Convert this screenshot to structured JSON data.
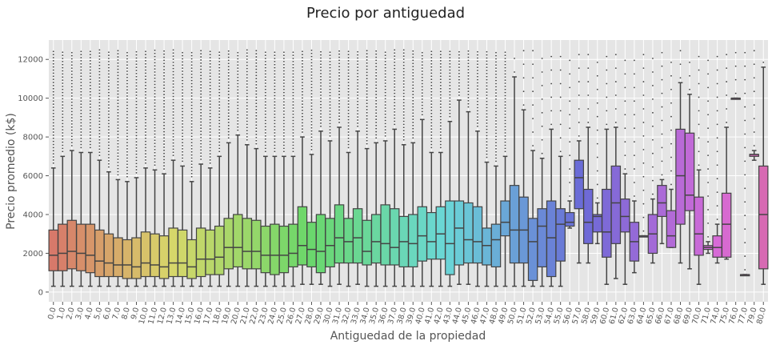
{
  "chart_data": {
    "type": "box",
    "title": "Precio por antiguedad",
    "xlabel": "Antiguedad de la propiedad",
    "ylabel": "Precio promedio (k$)",
    "ylim": [
      -500,
      13000
    ],
    "yticks": [
      0,
      2000,
      4000,
      6000,
      8000,
      10000,
      12000
    ],
    "grid": true,
    "legend": "none",
    "box_fields": [
      "lower_whisker",
      "q1",
      "median",
      "q3",
      "upper_whisker"
    ],
    "categories": [
      "0.0",
      "1.0",
      "2.0",
      "3.0",
      "4.0",
      "5.0",
      "6.0",
      "7.0",
      "8.0",
      "9.0",
      "10.0",
      "11.0",
      "12.0",
      "13.0",
      "14.0",
      "15.0",
      "16.0",
      "17.0",
      "18.0",
      "19.0",
      "20.0",
      "21.0",
      "22.0",
      "23.0",
      "24.0",
      "25.0",
      "26.0",
      "27.0",
      "28.0",
      "29.0",
      "30.0",
      "31.0",
      "32.0",
      "33.0",
      "34.0",
      "35.0",
      "36.0",
      "37.0",
      "38.0",
      "39.0",
      "40.0",
      "41.0",
      "42.0",
      "43.0",
      "44.0",
      "45.0",
      "46.0",
      "47.0",
      "48.0",
      "49.0",
      "50.0",
      "51.0",
      "52.0",
      "53.0",
      "54.0",
      "55.0",
      "56.0",
      "57.0",
      "58.0",
      "59.0",
      "60.0",
      "61.0",
      "62.0",
      "63.0",
      "64.0",
      "65.0",
      "66.0",
      "67.0",
      "68.0",
      "69.0",
      "70.0",
      "71.0",
      "74.0",
      "75.0",
      "76.0",
      "77.0",
      "79.0",
      "80.0"
    ],
    "boxes": [
      [
        300,
        1100,
        1900,
        3200,
        6400
      ],
      [
        300,
        1100,
        2000,
        3500,
        7000
      ],
      [
        300,
        1200,
        2100,
        3700,
        7300
      ],
      [
        300,
        1100,
        2000,
        3500,
        7200
      ],
      [
        300,
        1000,
        1900,
        3500,
        7200
      ],
      [
        300,
        800,
        1600,
        3200,
        6800
      ],
      [
        300,
        800,
        1500,
        3000,
        6200
      ],
      [
        300,
        800,
        1400,
        2800,
        5800
      ],
      [
        300,
        700,
        1400,
        2700,
        5700
      ],
      [
        300,
        700,
        1300,
        2800,
        5900
      ],
      [
        300,
        800,
        1500,
        3100,
        6400
      ],
      [
        300,
        800,
        1400,
        3000,
        6300
      ],
      [
        300,
        700,
        1300,
        2900,
        6100
      ],
      [
        300,
        800,
        1500,
        3300,
        6800
      ],
      [
        300,
        800,
        1500,
        3200,
        6500
      ],
      [
        300,
        700,
        1300,
        2700,
        5700
      ],
      [
        300,
        800,
        1700,
        3300,
        6600
      ],
      [
        300,
        900,
        1700,
        3200,
        6400
      ],
      [
        300,
        900,
        1800,
        3400,
        7000
      ],
      [
        300,
        1200,
        2300,
        3800,
        7700
      ],
      [
        300,
        1300,
        2300,
        4000,
        8100
      ],
      [
        300,
        1200,
        2100,
        3800,
        7600
      ],
      [
        300,
        1200,
        2100,
        3700,
        7400
      ],
      [
        300,
        1000,
        1900,
        3400,
        7000
      ],
      [
        300,
        900,
        1900,
        3500,
        7000
      ],
      [
        300,
        1000,
        1900,
        3400,
        7000
      ],
      [
        300,
        1300,
        2000,
        3500,
        7000
      ],
      [
        400,
        1400,
        2400,
        4400,
        8000
      ],
      [
        400,
        1300,
        2200,
        3600,
        7100
      ],
      [
        400,
        1000,
        2100,
        4000,
        8300
      ],
      [
        300,
        1300,
        2400,
        3800,
        7800
      ],
      [
        400,
        1500,
        2800,
        4500,
        8500
      ],
      [
        300,
        1500,
        2600,
        3800,
        7200
      ],
      [
        400,
        1500,
        2800,
        4300,
        8300
      ],
      [
        300,
        1400,
        2100,
        3700,
        7400
      ],
      [
        300,
        1500,
        2600,
        4000,
        7700
      ],
      [
        300,
        1400,
        2500,
        4500,
        7800
      ],
      [
        300,
        1400,
        2300,
        4300,
        8400
      ],
      [
        300,
        1300,
        2600,
        3900,
        7600
      ],
      [
        300,
        1300,
        2500,
        4000,
        7700
      ],
      [
        300,
        1600,
        2900,
        4400,
        8900
      ],
      [
        300,
        1700,
        2600,
        4100,
        7200
      ],
      [
        300,
        1700,
        3000,
        4400,
        7200
      ],
      [
        300,
        900,
        2500,
        4700,
        8800
      ],
      [
        400,
        1400,
        3300,
        4700,
        9900
      ],
      [
        400,
        1500,
        2700,
        4600,
        9300
      ],
      [
        300,
        1500,
        2600,
        4400,
        8300
      ],
      [
        300,
        1400,
        2400,
        3300,
        6700
      ],
      [
        300,
        1300,
        2700,
        3500,
        6500
      ],
      [
        300,
        2900,
        3600,
        4700,
        7000
      ],
      [
        300,
        1500,
        3200,
        5500,
        11100
      ],
      [
        300,
        1500,
        3200,
        4900,
        9400
      ],
      [
        300,
        600,
        2600,
        3800,
        7300
      ],
      [
        300,
        1300,
        3400,
        4300,
        6900
      ],
      [
        300,
        800,
        2800,
        4700,
        8400
      ],
      [
        300,
        1600,
        3500,
        4300,
        7000
      ],
      [
        3300,
        3400,
        3600,
        4100,
        4700
      ],
      [
        1500,
        4300,
        5900,
        6800,
        7800
      ],
      [
        1500,
        2500,
        3600,
        5300,
        8500
      ],
      [
        2500,
        3100,
        3900,
        4000,
        4600
      ],
      [
        400,
        1800,
        3100,
        5300,
        8400
      ],
      [
        700,
        2500,
        4600,
        6500,
        8500
      ],
      [
        400,
        3100,
        3900,
        4800,
        6100
      ],
      [
        1000,
        1600,
        2600,
        3600,
        4700
      ],
      [
        2900,
        2900,
        2900,
        2900,
        2900
      ],
      [
        1500,
        2000,
        3000,
        4000,
        4800
      ],
      [
        2500,
        3900,
        4600,
        5500,
        5800
      ],
      [
        2300,
        2300,
        2900,
        4200,
        5300
      ],
      [
        1500,
        3500,
        6000,
        8400,
        10800
      ],
      [
        1200,
        4200,
        5000,
        8200,
        10200
      ],
      [
        400,
        1900,
        3000,
        4900,
        6300
      ],
      [
        2000,
        2200,
        2300,
        2400,
        2600
      ],
      [
        1500,
        1800,
        2300,
        2900,
        3500
      ],
      [
        1700,
        1800,
        3500,
        5100,
        8500
      ],
      [
        10000,
        10000,
        10000,
        10000,
        10000
      ],
      [
        900,
        900,
        900,
        900,
        900
      ],
      [
        6800,
        7000,
        7100,
        7100,
        7300
      ],
      [
        400,
        1200,
        4000,
        6500,
        11600
      ]
    ],
    "outliers": {
      "note": "dense outlier points above upper whiskers up to 12500",
      "max": 12500
    }
  }
}
